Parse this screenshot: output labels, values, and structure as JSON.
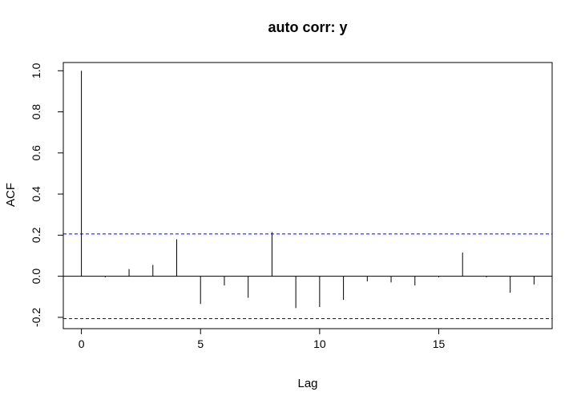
{
  "chart_data": {
    "type": "bar",
    "title": "auto corr: y",
    "xlabel": "Lag",
    "ylabel": "ACF",
    "xlim": [
      -0.76,
      19.76
    ],
    "ylim": [
      -0.255,
      1.04
    ],
    "x_ticks": [
      0,
      5,
      10,
      15
    ],
    "y_ticks": [
      -0.2,
      0.0,
      0.2,
      0.4,
      0.6,
      0.8,
      1.0
    ],
    "y_tick_labels": [
      "-0.2",
      "0.0",
      "0.2",
      "0.4",
      "0.6",
      "0.8",
      "1.0"
    ],
    "lags": [
      0,
      1,
      2,
      3,
      4,
      5,
      6,
      7,
      8,
      9,
      10,
      11,
      12,
      13,
      14,
      15,
      16,
      17,
      18,
      19
    ],
    "values": [
      1.0,
      -0.005,
      0.035,
      0.055,
      0.18,
      -0.135,
      -0.045,
      -0.105,
      0.215,
      -0.155,
      -0.15,
      -0.115,
      -0.025,
      -0.03,
      -0.045,
      -0.005,
      0.115,
      -0.005,
      -0.08,
      -0.04
    ],
    "confidence_bound": 0.206,
    "confidence_color": "#0000ff",
    "grid": false
  }
}
